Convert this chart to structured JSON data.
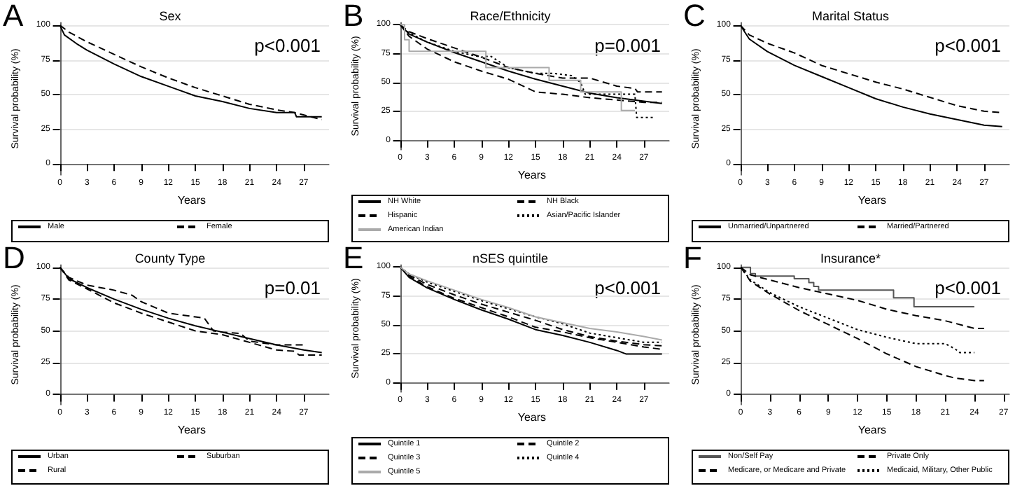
{
  "chart_data": [
    {
      "type": "line",
      "title": "Sex",
      "xlabel": "Years",
      "ylabel": "Survival probability (%)",
      "annotations": [
        "A",
        "p<0.001"
      ],
      "xlim": [
        -0.6,
        29.8
      ],
      "xticks": [
        0,
        3,
        6,
        9,
        12,
        15,
        18,
        21,
        24,
        27
      ],
      "ylim": [
        -8,
        102
      ],
      "yticks": [
        0,
        25,
        50,
        75,
        100
      ],
      "grid": "y",
      "legend": "bottom",
      "marker": "none",
      "series": [
        {
          "name": "Male",
          "color": "#000000",
          "line_style": "solid",
          "x": [
            0,
            0.5,
            2,
            3,
            6,
            9,
            12,
            15,
            18,
            21,
            24,
            26,
            26.2,
            29
          ],
          "values": [
            100,
            93,
            86,
            82,
            72,
            63,
            56,
            49,
            45,
            40,
            37,
            37,
            34,
            34
          ]
        },
        {
          "name": "Female",
          "color": "#000000",
          "line_style": "dashed",
          "x": [
            0,
            1,
            3,
            6,
            9,
            12,
            15,
            18,
            21,
            24,
            26,
            29
          ],
          "values": [
            100,
            95,
            88,
            79,
            70,
            62,
            55,
            49,
            43,
            39,
            37,
            32
          ]
        }
      ]
    },
    {
      "type": "line",
      "title": "Race/Ethnicity",
      "xlabel": "Years",
      "ylabel": "Survival probability (%)",
      "annotations": [
        "B",
        "p=0.001"
      ],
      "xlim": [
        -0.6,
        29.8
      ],
      "xticks": [
        0,
        3,
        6,
        9,
        12,
        15,
        18,
        21,
        24,
        27
      ],
      "ylim": [
        -8,
        102
      ],
      "yticks": [
        0,
        25,
        50,
        75,
        100
      ],
      "grid": "y",
      "legend": "bottom",
      "marker": "none",
      "series": [
        {
          "name": "NH White",
          "color": "#000000",
          "line_style": "solid",
          "x": [
            0,
            1,
            3,
            6,
            9,
            12,
            15,
            18,
            21,
            24,
            27,
            29
          ],
          "values": [
            100,
            92,
            85,
            76,
            68,
            60,
            53,
            47,
            41,
            37,
            34,
            32
          ]
        },
        {
          "name": "NH Black",
          "color": "#000000",
          "line_style": "dashed",
          "x": [
            0,
            1,
            3,
            6,
            9,
            12,
            15,
            18,
            21,
            24,
            27,
            29
          ],
          "values": [
            100,
            90,
            79,
            68,
            60,
            53,
            42,
            40,
            37,
            35,
            33,
            33
          ]
        },
        {
          "name": "Hispanic",
          "color": "#000000",
          "line_style": "dashed",
          "x": [
            0,
            1,
            3,
            6,
            9,
            12,
            15,
            18,
            21,
            24,
            26,
            26.3,
            29
          ],
          "values": [
            100,
            94,
            88,
            80,
            72,
            63,
            58,
            54,
            54,
            47,
            45,
            42,
            42
          ]
        },
        {
          "name": "Asian/Pacific Islander",
          "color": "#000000",
          "line_style": "dotted",
          "x": [
            0,
            1,
            3,
            6,
            9,
            10,
            12,
            15,
            17,
            19,
            20,
            20.5,
            26,
            26.2,
            28
          ],
          "values": [
            100,
            93,
            85,
            77,
            72,
            73,
            63,
            58,
            58,
            56,
            50,
            40,
            40,
            20,
            20
          ]
        },
        {
          "name": "American Indian",
          "type": "step",
          "color": "#aaaaaa",
          "line_style": "solid",
          "x": [
            0,
            0.5,
            1,
            9,
            9.5,
            16.5,
            20,
            24.5,
            26
          ],
          "values": [
            100,
            87,
            77,
            77,
            63,
            52,
            42,
            26,
            26
          ]
        }
      ]
    },
    {
      "type": "line",
      "title": "Marital Status",
      "xlabel": "Years",
      "ylabel": "Survival probability (%)",
      "annotations": [
        "C",
        "p<0.001"
      ],
      "xlim": [
        -0.6,
        29.8
      ],
      "xticks": [
        0,
        3,
        6,
        9,
        12,
        15,
        18,
        21,
        24,
        27
      ],
      "ylim": [
        -8,
        102
      ],
      "yticks": [
        0,
        25,
        50,
        75,
        100
      ],
      "grid": "y",
      "legend": "bottom",
      "marker": "none",
      "series": [
        {
          "name": "Unmarried/Unpartnered",
          "color": "#000000",
          "line_style": "solid",
          "x": [
            0,
            1,
            3,
            6,
            9,
            12,
            15,
            18,
            21,
            24,
            27,
            29
          ],
          "values": [
            100,
            90,
            81,
            71,
            63,
            55,
            47,
            41,
            36,
            32,
            28,
            27
          ]
        },
        {
          "name": "Married/Partnered",
          "color": "#000000",
          "line_style": "dashed",
          "x": [
            0,
            1,
            3,
            6,
            9,
            12,
            15,
            18,
            21,
            24,
            27,
            29
          ],
          "values": [
            100,
            93,
            87,
            80,
            71,
            65,
            59,
            54,
            48,
            42,
            38,
            37
          ]
        }
      ]
    },
    {
      "type": "line",
      "title": "County Type",
      "xlabel": "Years",
      "ylabel": "Survival probability (%)",
      "annotations": [
        "D",
        "p=0.01"
      ],
      "xlim": [
        -0.6,
        29.8
      ],
      "xticks": [
        0,
        3,
        6,
        9,
        12,
        15,
        18,
        21,
        24,
        27
      ],
      "ylim": [
        -8,
        102
      ],
      "yticks": [
        0,
        25,
        50,
        75,
        100
      ],
      "grid": "y",
      "legend": "bottom",
      "marker": "none",
      "series": [
        {
          "name": "Urban",
          "color": "#000000",
          "line_style": "solid",
          "x": [
            0,
            1,
            3,
            6,
            9,
            12,
            15,
            18,
            21,
            24,
            27,
            29
          ],
          "values": [
            100,
            91,
            84,
            75,
            67,
            60,
            54,
            49,
            44,
            39,
            35,
            33
          ]
        },
        {
          "name": "Suburban",
          "color": "#000000",
          "line_style": "dashed",
          "x": [
            0,
            1,
            3,
            6,
            9,
            12,
            15,
            18,
            21,
            24,
            26,
            26.5,
            29
          ],
          "values": [
            100,
            90,
            83,
            72,
            64,
            57,
            50,
            47,
            41,
            35,
            34,
            31,
            31
          ]
        },
        {
          "name": "Rural",
          "color": "#000000",
          "line_style": "dashed",
          "x": [
            0,
            1,
            3,
            6,
            8,
            9,
            12,
            15,
            16,
            17,
            18,
            20,
            21,
            24,
            27
          ],
          "values": [
            100,
            92,
            86,
            82,
            78,
            73,
            64,
            61,
            60,
            50,
            49,
            48,
            42,
            39,
            39
          ]
        }
      ]
    },
    {
      "type": "line",
      "title": "nSES quintile",
      "xlabel": "Years",
      "ylabel": "Survival probability (%)",
      "annotations": [
        "E",
        "p<0.001"
      ],
      "xlim": [
        -0.6,
        29.8
      ],
      "xticks": [
        0,
        3,
        6,
        9,
        12,
        15,
        18,
        21,
        24,
        27
      ],
      "ylim": [
        -8,
        102
      ],
      "yticks": [
        0,
        25,
        50,
        75,
        100
      ],
      "grid": "y",
      "legend": "bottom",
      "marker": "none",
      "series": [
        {
          "name": "Quintile 1",
          "color": "#000000",
          "line_style": "solid",
          "x": [
            0,
            1,
            3,
            6,
            9,
            12,
            15,
            18,
            21,
            24,
            25,
            29
          ],
          "values": [
            100,
            91,
            82,
            72,
            63,
            55,
            46,
            41,
            35,
            28,
            25,
            25
          ]
        },
        {
          "name": "Quintile 2",
          "color": "#000000",
          "line_style": "dashed",
          "x": [
            0,
            1,
            3,
            6,
            9,
            12,
            15,
            18,
            21,
            24,
            27,
            29
          ],
          "values": [
            100,
            92,
            83,
            73,
            65,
            57,
            48,
            44,
            39,
            35,
            31,
            29
          ]
        },
        {
          "name": "Quintile 3",
          "color": "#000000",
          "line_style": "dashed",
          "x": [
            0,
            1,
            3,
            6,
            9,
            12,
            15,
            18,
            21,
            24,
            27,
            29
          ],
          "values": [
            100,
            93,
            85,
            76,
            68,
            61,
            54,
            46,
            40,
            36,
            33,
            32
          ]
        },
        {
          "name": "Quintile 4",
          "color": "#000000",
          "line_style": "dotted",
          "x": [
            0,
            1,
            3,
            6,
            9,
            12,
            15,
            18,
            21,
            24,
            27,
            29
          ],
          "values": [
            100,
            94,
            87,
            79,
            71,
            64,
            57,
            51,
            43,
            39,
            35,
            35
          ]
        },
        {
          "name": "Quintile 5",
          "color": "#aaaaaa",
          "line_style": "solid",
          "x": [
            0,
            1,
            3,
            6,
            9,
            12,
            15,
            18,
            21,
            24,
            27,
            29
          ],
          "values": [
            100,
            94,
            88,
            80,
            72,
            65,
            57,
            52,
            47,
            44,
            40,
            37
          ]
        }
      ]
    },
    {
      "type": "line",
      "title": "Insurance*",
      "xlabel": "Years",
      "ylabel": "Survival probability (%)",
      "annotations": [
        "F",
        "p<0.001"
      ],
      "xlim": [
        -0.6,
        27.6
      ],
      "xticks": [
        0,
        3,
        6,
        9,
        12,
        15,
        18,
        21,
        24,
        27
      ],
      "ylim": [
        -8,
        102
      ],
      "yticks": [
        0,
        25,
        50,
        75,
        100
      ],
      "grid": "y",
      "legend": "bottom",
      "marker": "none",
      "series": [
        {
          "name": "Non/Self Pay",
          "type": "step",
          "color": "#555555",
          "line_style": "solid",
          "x": [
            0,
            1,
            1.5,
            5,
            5.5,
            7,
            7.5,
            8,
            15.7,
            17.8,
            24
          ],
          "values": [
            100,
            95,
            93,
            93,
            91,
            88,
            85,
            82,
            76,
            69,
            69
          ]
        },
        {
          "name": "Private Only",
          "color": "#000000",
          "line_style": "dashed",
          "x": [
            0,
            1,
            3,
            6,
            9,
            12,
            15,
            18,
            21,
            23,
            24,
            25
          ],
          "values": [
            100,
            94,
            90,
            84,
            79,
            74,
            67,
            62,
            58,
            54,
            52,
            52
          ]
        },
        {
          "name": "Medicare, or Medicare and Private",
          "color": "#000000",
          "line_style": "dashed",
          "x": [
            0,
            1,
            3,
            6,
            9,
            12,
            15,
            18,
            21,
            22,
            24,
            25
          ],
          "values": [
            100,
            89,
            79,
            66,
            55,
            44,
            32,
            22,
            15,
            13,
            11,
            11
          ]
        },
        {
          "name": "Medicaid, Military, Other Public",
          "color": "#000000",
          "line_style": "dotted",
          "x": [
            0,
            1,
            3,
            6,
            9,
            12,
            15,
            18,
            21,
            22,
            22.5,
            24
          ],
          "values": [
            100,
            90,
            80,
            69,
            60,
            51,
            45,
            40,
            40,
            36,
            33,
            33
          ]
        }
      ]
    }
  ]
}
